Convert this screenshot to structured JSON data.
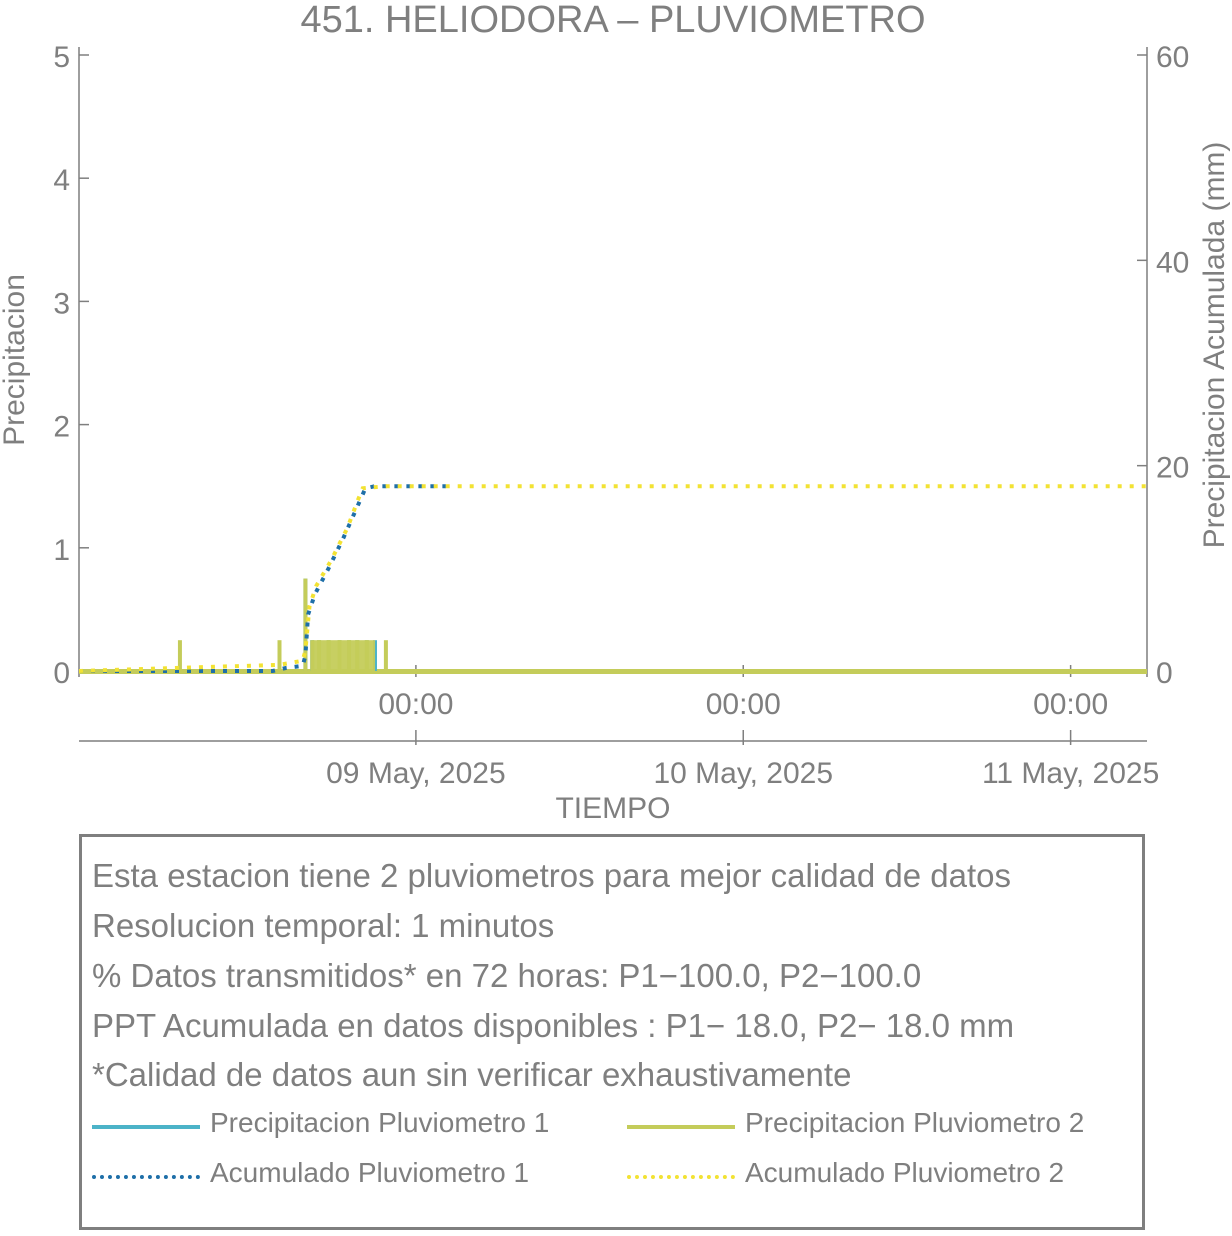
{
  "chart_data": {
    "type": "bar",
    "title": "451. HELIODORA – PLUVIOMETRO",
    "xlabel": "TIEMPO",
    "ylabel": "Precipitacion",
    "ylabel_right": "Precipitacion Acumulada (mm)",
    "ylim": [
      0,
      5
    ],
    "ylim_right": [
      0,
      60
    ],
    "yticks": [
      "0",
      "1",
      "2",
      "3",
      "4",
      "5"
    ],
    "yticks_right": [
      "0",
      "20",
      "40",
      "60"
    ],
    "xlim_hours": [
      -24.7,
      53.6
    ],
    "xticks": [
      {
        "time": "00:00",
        "date": "09 May, 2025",
        "hours": 0
      },
      {
        "time": "00:00",
        "date": "10 May, 2025",
        "hours": 24
      },
      {
        "time": "00:00",
        "date": "11 May, 2025",
        "hours": 48
      }
    ],
    "series": [
      {
        "name": "Precipitacion Pluviometro 1",
        "kind": "bar",
        "color": "#4cb3c8",
        "points": [
          [
            -8.1,
            0.75
          ],
          [
            -7.6,
            0.25
          ],
          [
            -7.1,
            0.25
          ],
          [
            -6.4,
            0.25
          ],
          [
            -5.6,
            0.25
          ],
          [
            -4.9,
            0.25
          ],
          [
            -4.3,
            0.25
          ],
          [
            -3.6,
            0.25
          ],
          [
            -3.0,
            0.25
          ]
        ]
      },
      {
        "name": "Precipitacion Pluviometro 2",
        "kind": "bar",
        "color": "#c4cc5a",
        "points": [
          [
            -17.3,
            0.25
          ],
          [
            -10.0,
            0.25
          ],
          [
            -8.1,
            0.75
          ],
          [
            -7.6,
            0.25
          ],
          [
            -7.1,
            0.25
          ],
          [
            -6.4,
            0.25
          ],
          [
            -5.6,
            0.25
          ],
          [
            -4.9,
            0.25
          ],
          [
            -4.3,
            0.25
          ],
          [
            -3.6,
            0.25
          ],
          [
            -2.2,
            0.25
          ]
        ]
      },
      {
        "name": "Acumulado Pluviometro 1",
        "kind": "cumulative",
        "color": "#1e6fa8",
        "points": [
          [
            -24.7,
            0
          ],
          [
            -10.5,
            0
          ],
          [
            -9.5,
            0.3
          ],
          [
            -8.3,
            0.5
          ],
          [
            -8.1,
            1.5
          ],
          [
            -7.9,
            5.5
          ],
          [
            -7.4,
            7.5
          ],
          [
            -6.4,
            10
          ],
          [
            -5.3,
            13
          ],
          [
            -4.3,
            16
          ],
          [
            -3.7,
            17.8
          ],
          [
            -3.0,
            18
          ],
          [
            2.2,
            18
          ]
        ]
      },
      {
        "name": "Acumulado Pluviometro 2",
        "kind": "cumulative",
        "color": "#f2e233",
        "points": [
          [
            -24.7,
            0
          ],
          [
            -17.3,
            0.3
          ],
          [
            -10.0,
            0.6
          ],
          [
            -8.3,
            1.0
          ],
          [
            -8.1,
            2.0
          ],
          [
            -7.8,
            6.3
          ],
          [
            -7.3,
            8.3
          ],
          [
            -6.2,
            10.8
          ],
          [
            -5.0,
            14
          ],
          [
            -4.3,
            16.5
          ],
          [
            -3.9,
            17.8
          ],
          [
            -2.2,
            18
          ],
          [
            53.6,
            18
          ]
        ]
      }
    ]
  },
  "info": {
    "lines": [
      "Esta estacion tiene 2 pluviometros para mejor calidad de datos",
      "Resolucion temporal: 1 minutos",
      "% Datos transmitidos* en 72 horas: P1−100.0, P2−100.0",
      "PPT Acumulada en datos disponibles : P1− 18.0, P2− 18.0 mm",
      "*Calidad de datos aun sin verificar exhaustivamente"
    ]
  },
  "legend": [
    {
      "label": "Precipitacion Pluviometro 1",
      "color": "#4cb3c8",
      "style": "solid"
    },
    {
      "label": "Precipitacion Pluviometro 2",
      "color": "#c4cc5a",
      "style": "solid"
    },
    {
      "label": "Acumulado Pluviometro 1",
      "color": "#1e6fa8",
      "style": "dotted"
    },
    {
      "label": "Acumulado Pluviometro 2",
      "color": "#f2e233",
      "style": "dotted"
    }
  ]
}
